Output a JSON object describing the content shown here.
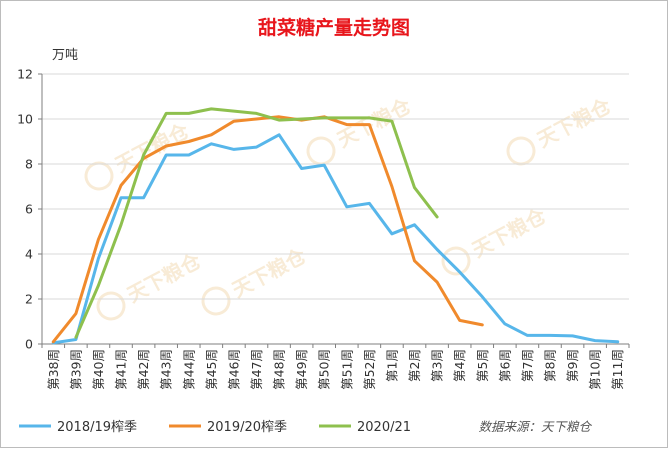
{
  "chart_data": {
    "type": "line",
    "title": "甜菜糖产量走势图",
    "ylabel": "万吨",
    "xlabel": "",
    "ylim": [
      0,
      12
    ],
    "yticks": [
      "0",
      "2",
      "4",
      "6",
      "8",
      "10",
      "12"
    ],
    "grid": true,
    "legend_position": "bottom-left",
    "source": "数据来源：天下粮仓",
    "watermark": "天下粮仓",
    "categories": [
      "第38周",
      "第39周",
      "第40周",
      "第41周",
      "第42周",
      "第43周",
      "第44周",
      "第45周",
      "第46周",
      "第47周",
      "第48周",
      "第49周",
      "第50周",
      "第51周",
      "第52周",
      "第1周",
      "第2周",
      "第3周",
      "第4周",
      "第5周",
      "第6周",
      "第7周",
      "第8周",
      "第9周",
      "第10周",
      "第11周"
    ],
    "series": [
      {
        "name": "2018/19榨季",
        "color": "#57b6ea",
        "values": [
          0.05,
          0.2,
          3.8,
          6.5,
          6.5,
          8.4,
          8.4,
          8.9,
          8.65,
          8.75,
          9.3,
          7.8,
          7.95,
          6.1,
          6.25,
          4.9,
          5.3,
          4.2,
          3.2,
          2.1,
          0.9,
          0.38,
          0.38,
          0.36,
          0.15,
          0.1
        ]
      },
      {
        "name": "2019/20榨季",
        "color": "#f08a2c",
        "values": [
          0.1,
          1.35,
          4.65,
          7.05,
          8.25,
          8.8,
          9.0,
          9.3,
          9.9,
          10.0,
          10.1,
          9.95,
          10.1,
          9.75,
          9.75,
          7.0,
          3.7,
          2.75,
          1.05,
          0.85,
          null,
          null,
          null,
          null,
          null,
          null
        ]
      },
      {
        "name": "2020/21",
        "color": "#8ec04e",
        "values": [
          null,
          0.3,
          2.6,
          5.3,
          8.4,
          10.25,
          10.25,
          10.45,
          10.35,
          10.25,
          9.95,
          10.0,
          10.05,
          10.05,
          10.05,
          9.9,
          6.95,
          5.65,
          null,
          null,
          null,
          null,
          null,
          null,
          null,
          null
        ]
      }
    ]
  }
}
